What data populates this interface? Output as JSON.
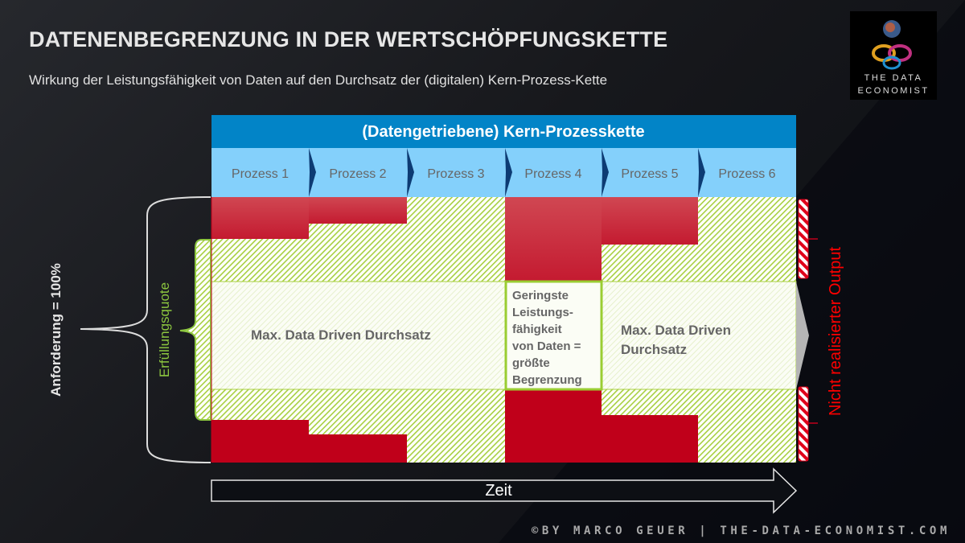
{
  "header": {
    "title": "DATENENBEGRENZUNG IN DER WERTSCHÖPFUNGSKETTE",
    "subtitle": "Wirkung der Leistungsfähigkeit von Daten auf den Durchsatz der (digitalen) Kern-Prozess-Kette"
  },
  "logo": {
    "line1": "THE DATA",
    "line2": "ECONOMIST"
  },
  "chain": {
    "title": "(Datengetriebene) Kern-Prozesskette",
    "processes": [
      "Prozess 1",
      "Prozess 2",
      "Prozess 3",
      "Prozess 4",
      "Prozess 5",
      "Prozess 6"
    ]
  },
  "labels": {
    "requirement": "Anforderung = 100%",
    "fulfillment": "Erfüllungsquote",
    "throughput_left": "Max. Data Driven Durchsatz",
    "throughput_right_1": "Max. Data Driven",
    "throughput_right_2": "Durchsatz",
    "bottleneck": [
      "Geringste",
      "Leistungs-",
      "fähigkeit",
      "von Daten =",
      "größte",
      "Begrenzung"
    ],
    "unrealized": "Nicht realisierter Output",
    "time": "Zeit"
  },
  "footer": "©BY MARCO GEUER | THE-DATA-ECONOMIST.COM",
  "colors": {
    "header_blue": "#0284c7",
    "process_blue": "#84d0fb",
    "red": "#c0001a",
    "green": "#9acd32",
    "text_grey": "#666666",
    "unrealized_red": "#ff0000"
  }
}
